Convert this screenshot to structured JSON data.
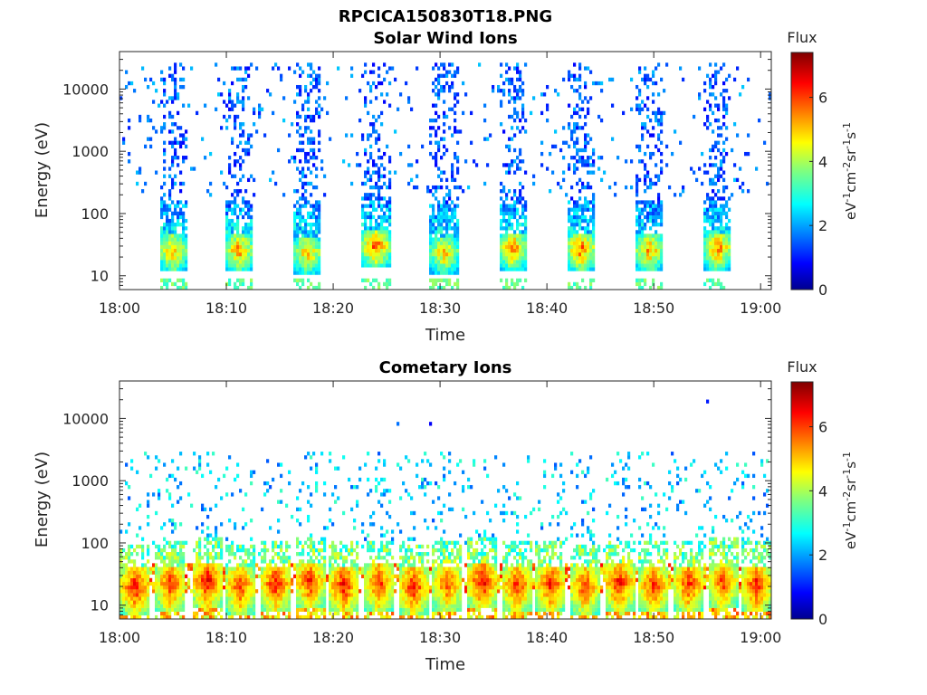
{
  "figure": {
    "title": "RPCICA150830T18.PNG"
  },
  "colors": {
    "axis": "#262626",
    "colormap": "jet",
    "background": "#ffffff"
  },
  "chart_data": [
    {
      "type": "heatmap",
      "title": "Solar Wind Ions",
      "xlabel": "Time",
      "ylabel": "Energy (eV)",
      "x_ticks": [
        "18:00",
        "18:10",
        "18:20",
        "18:30",
        "18:40",
        "18:50",
        "19:00"
      ],
      "x_range_minutes": [
        0,
        61
      ],
      "y_scale": "log",
      "y_ticks": [
        "10",
        "100",
        "1000",
        "10000"
      ],
      "y_range": [
        6,
        40000
      ],
      "colorbar": {
        "label": "Flux",
        "unit": "eV-1cm-2sr-1s-1",
        "range": [
          0,
          7.4
        ],
        "ticks": [
          "0",
          "2",
          "4",
          "6"
        ]
      },
      "pulse_centers_min": [
        5.0,
        11.2,
        17.6,
        24.0,
        30.4,
        36.8,
        43.2,
        49.6,
        56.0
      ],
      "peak_energy_eV": [
        25,
        26,
        24,
        30,
        24,
        28,
        27,
        26,
        28
      ],
      "peak_flux": [
        6.2,
        6.4,
        6.1,
        6.9,
        6.0,
        6.5,
        6.8,
        6.3,
        6.6
      ],
      "description_series": [
        {
          "name": "pulse core",
          "energy_range_eV": [
            15,
            45
          ],
          "flux_range": [
            4,
            7.2
          ]
        },
        {
          "name": "high-energy tail",
          "energy_range_eV": [
            100,
            20000
          ],
          "flux_range": [
            0.8,
            2.5
          ]
        }
      ]
    },
    {
      "type": "heatmap",
      "title": "Cometary Ions",
      "xlabel": "Time",
      "ylabel": "Energy (eV)",
      "x_ticks": [
        "18:00",
        "18:10",
        "18:20",
        "18:30",
        "18:40",
        "18:50",
        "19:00"
      ],
      "x_range_minutes": [
        0,
        61
      ],
      "y_scale": "log",
      "y_ticks": [
        "10",
        "100",
        "1000",
        "10000"
      ],
      "y_range": [
        6,
        40000
      ],
      "colorbar": {
        "label": "Flux",
        "unit": "eV-1cm-2sr-1s-1",
        "range": [
          0,
          7.4
        ],
        "ticks": [
          "0",
          "2",
          "4",
          "6"
        ]
      },
      "pulse_centers_min": [
        1.5,
        4.8,
        8.2,
        11.3,
        14.6,
        17.8,
        21.0,
        24.3,
        27.5,
        30.7,
        34.0,
        37.2,
        40.4,
        43.6,
        46.8,
        50.0,
        53.3,
        56.5,
        59.6
      ],
      "peak_energy_eV": [
        20,
        22,
        25,
        20,
        22,
        24,
        21,
        23,
        20,
        22,
        24,
        21,
        22,
        20,
        23,
        21,
        22,
        24,
        21
      ],
      "peak_flux": [
        7.2,
        6.9,
        7.3,
        6.8,
        7.1,
        7.0,
        7.2,
        6.9,
        7.1,
        6.7,
        7.3,
        7.0,
        7.1,
        6.8,
        7.2,
        6.9,
        7.0,
        6.8,
        7.1
      ],
      "description_series": [
        {
          "name": "pulse core",
          "energy_range_eV": [
            10,
            45
          ],
          "flux_range": [
            5,
            7.4
          ]
        },
        {
          "name": "background",
          "energy_range_eV": [
            100,
            35000
          ],
          "flux_range": [
            1,
            3
          ]
        }
      ]
    }
  ]
}
